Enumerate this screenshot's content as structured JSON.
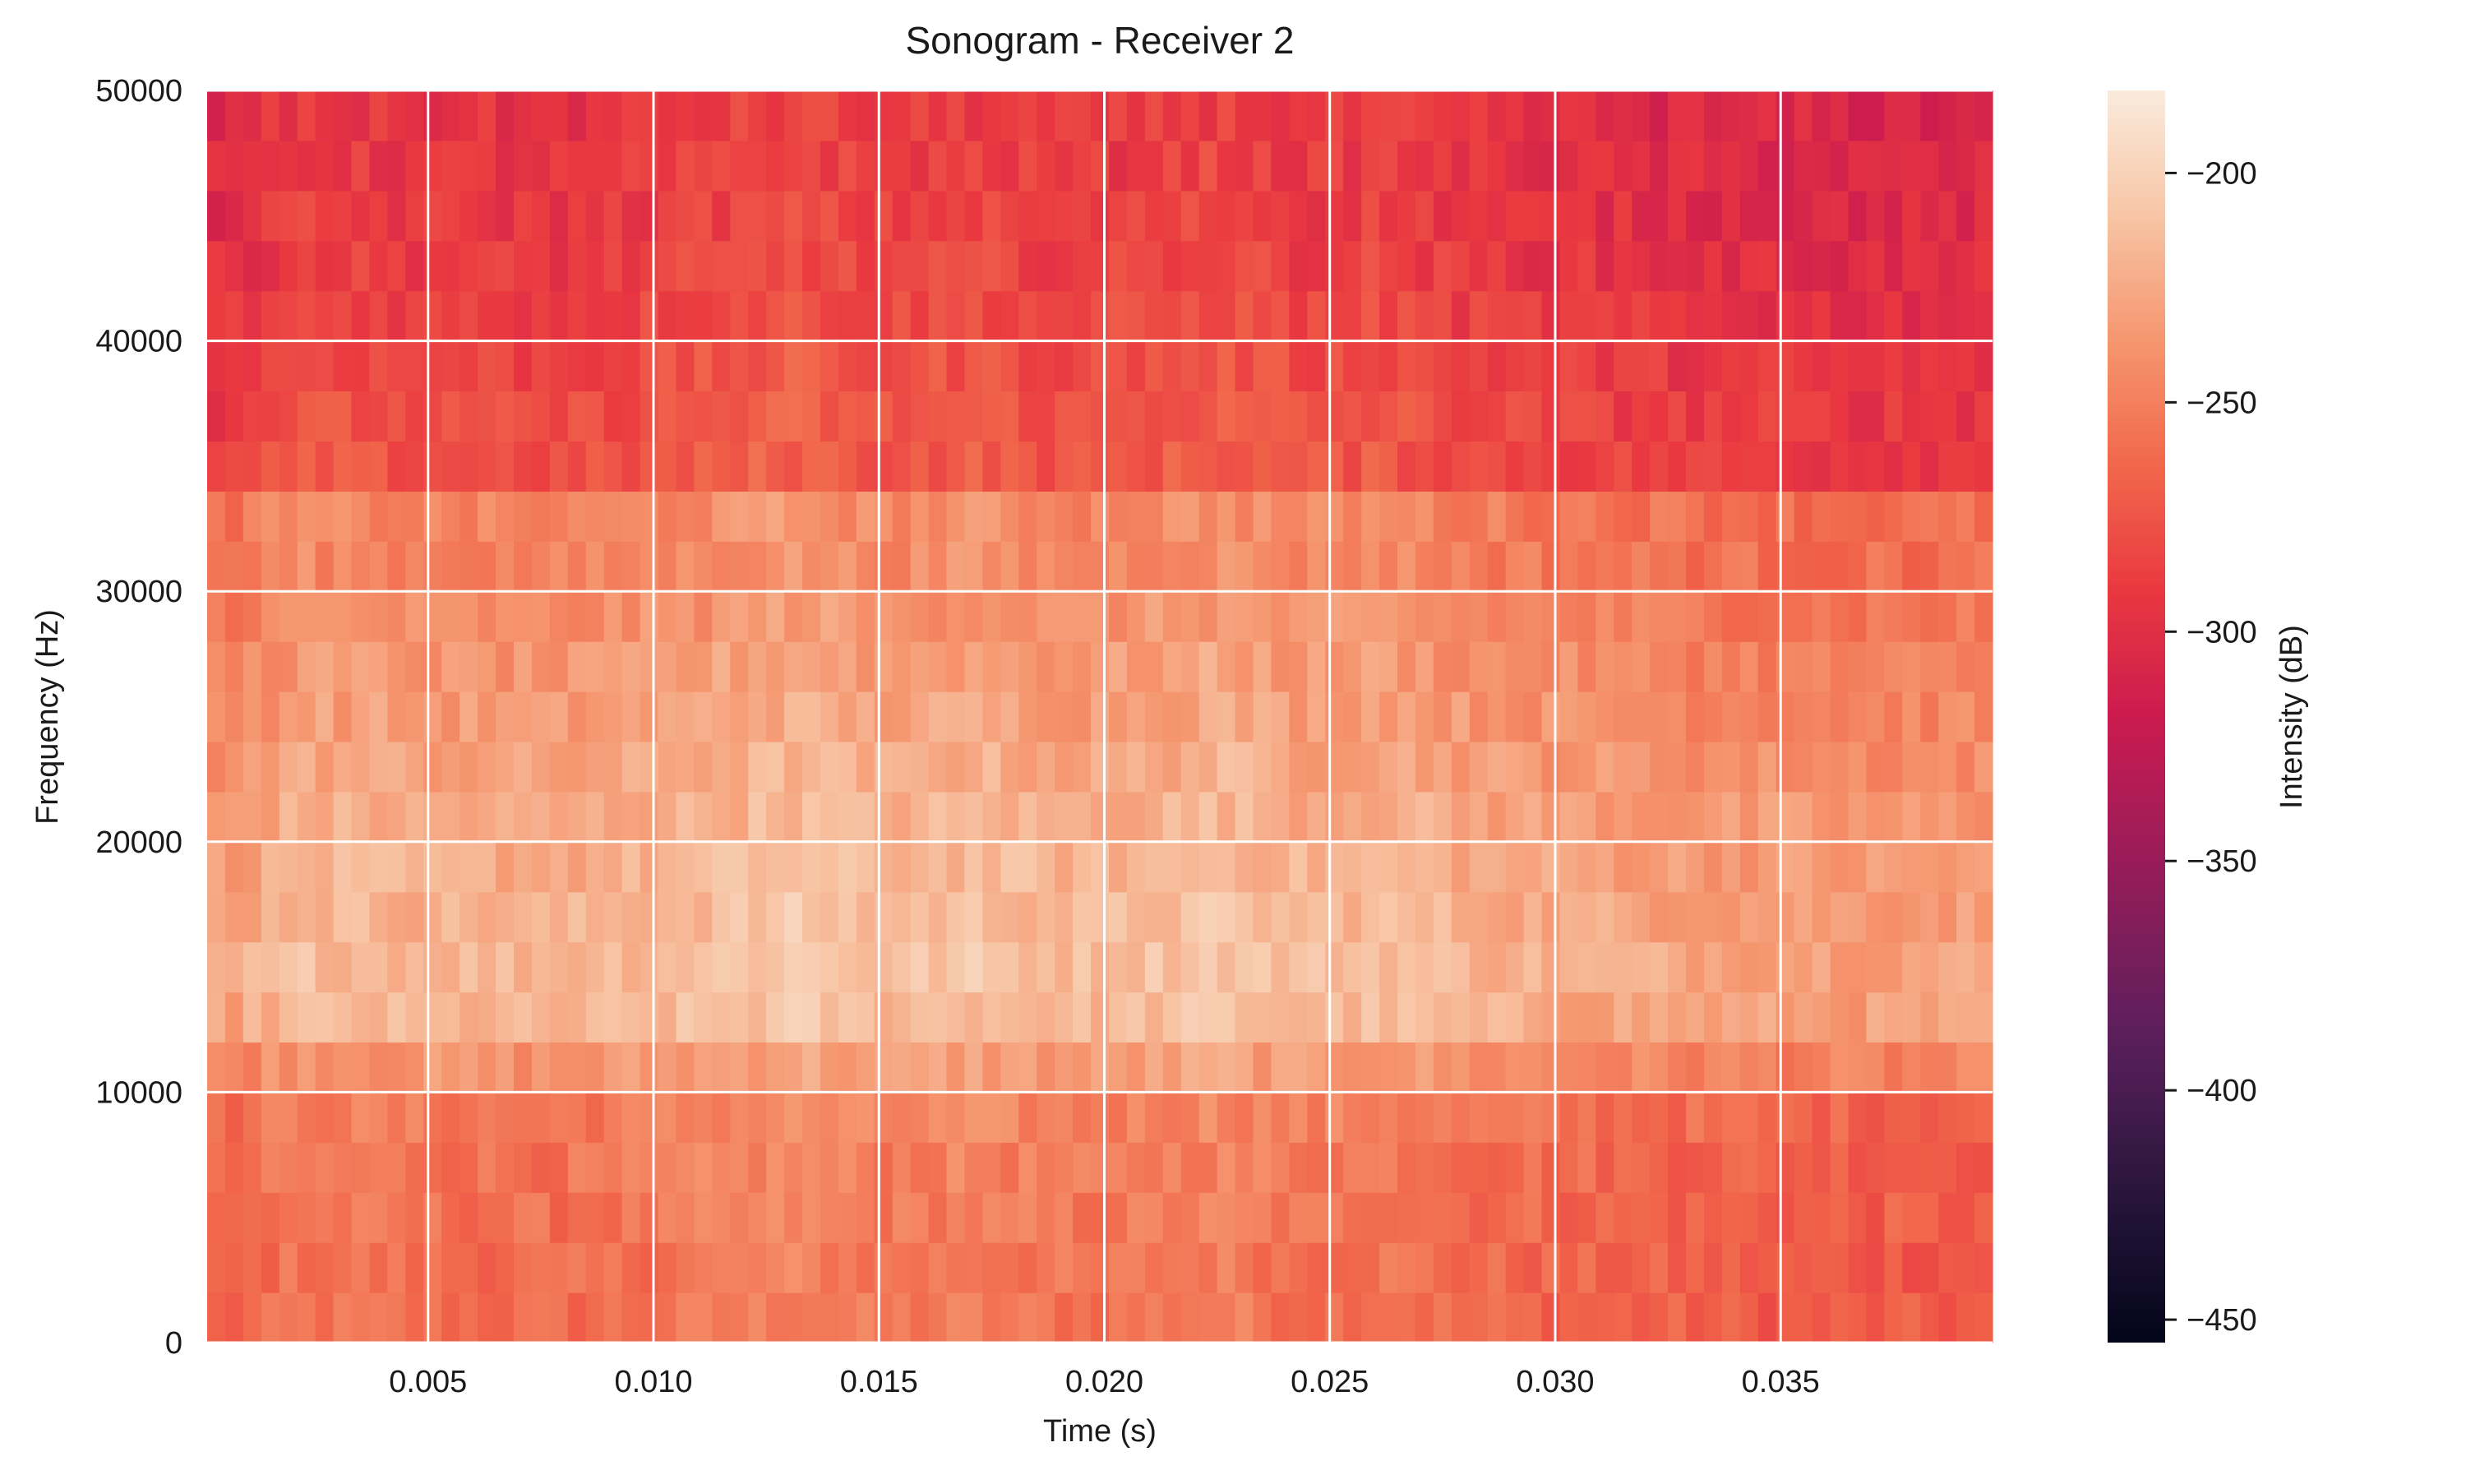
{
  "chart_data": {
    "type": "heatmap",
    "title": "Sonogram - Receiver 2",
    "xlabel": "Time (s)",
    "ylabel": "Frequency (Hz)",
    "xlim": [
      0.0001,
      0.0397
    ],
    "ylim": [
      0,
      50000
    ],
    "x_ticks": [
      0.005,
      0.01,
      0.015,
      0.02,
      0.025,
      0.03,
      0.035
    ],
    "x_tick_labels": [
      "0.005",
      "0.010",
      "0.015",
      "0.020",
      "0.025",
      "0.030",
      "0.035"
    ],
    "y_ticks": [
      0,
      10000,
      20000,
      30000,
      40000,
      50000
    ],
    "y_tick_labels": [
      "0",
      "10000",
      "20000",
      "30000",
      "40000",
      "50000"
    ],
    "grid": true,
    "grid_color": "#ffffff",
    "colormap": "rocket",
    "colorbar": {
      "label": "Intensity (dB)",
      "vmin": -455,
      "vmax": -182,
      "ticks": [
        -200,
        -250,
        -300,
        -350,
        -400,
        -450
      ],
      "tick_labels": [
        "−200",
        "−250",
        "−300",
        "−350",
        "−400",
        "−450"
      ]
    },
    "frequency_bins": [
      0,
      2000,
      4000,
      6000,
      8000,
      10000,
      12000,
      14000,
      16000,
      18000,
      20000,
      22000,
      24000,
      26000,
      28000,
      30000,
      32000,
      34000,
      36000,
      38000,
      40000,
      42000,
      44000,
      46000,
      48000,
      50000
    ],
    "time_bin_count": 99,
    "band_profile_dB": [
      -262,
      -262,
      -260,
      -258,
      -255,
      -240,
      -222,
      -218,
      -222,
      -225,
      -228,
      -232,
      -236,
      -240,
      -245,
      -250,
      -250,
      -280,
      -282,
      -285,
      -288,
      -292,
      -294,
      -296,
      -298
    ],
    "time_profile_dB": [
      {
        "t": 0.0001,
        "offset": -10
      },
      {
        "t": 0.0022,
        "offset": 6
      },
      {
        "t": 0.005,
        "offset": 2
      },
      {
        "t": 0.008,
        "offset": 0
      },
      {
        "t": 0.0105,
        "offset": 6
      },
      {
        "t": 0.0132,
        "offset": 14
      },
      {
        "t": 0.015,
        "offset": 6
      },
      {
        "t": 0.017,
        "offset": 10
      },
      {
        "t": 0.0195,
        "offset": 4
      },
      {
        "t": 0.0225,
        "offset": 12
      },
      {
        "t": 0.0245,
        "offset": 4
      },
      {
        "t": 0.0262,
        "offset": 8
      },
      {
        "t": 0.028,
        "offset": 0
      },
      {
        "t": 0.032,
        "offset": -6
      },
      {
        "t": 0.036,
        "offset": -10
      },
      {
        "t": 0.0397,
        "offset": -10
      }
    ]
  }
}
